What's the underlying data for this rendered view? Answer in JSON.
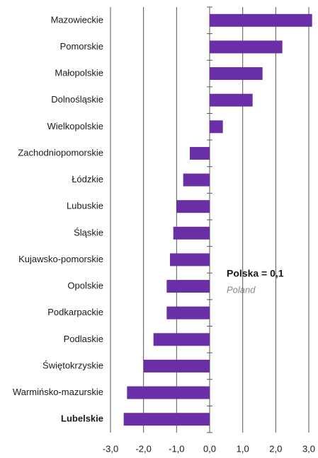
{
  "chart_data": {
    "type": "barh",
    "categories": [
      "Mazowieckie",
      "Pomorskie",
      "Małopolskie",
      "Dolnośląskie",
      "Wielkopolskie",
      "Zachodniopomorskie",
      "Łódzkie",
      "Lubuskie",
      "Śląskie",
      "Kujawsko-pomorskie",
      "Opolskie",
      "Podkarpackie",
      "Podlaskie",
      "Świętokrzyskie",
      "Warmińsko-mazurskie",
      "Lubelskie"
    ],
    "values": [
      3.1,
      2.2,
      1.6,
      1.3,
      0.4,
      -0.6,
      -0.8,
      -1.0,
      -1.1,
      -1.2,
      -1.3,
      -1.3,
      -1.7,
      -2.0,
      -2.5,
      -2.6
    ],
    "color": "#6a2ea6",
    "highlight": "Lubelskie",
    "xlim": [
      -3,
      3
    ],
    "xticks": [
      {
        "value": -3,
        "label": "-3,0"
      },
      {
        "value": -2,
        "label": "-2,0"
      },
      {
        "value": -1,
        "label": "-1,0"
      },
      {
        "value": 0,
        "label": "0,0"
      },
      {
        "value": 1,
        "label": "1,0"
      },
      {
        "value": 2,
        "label": "2,0"
      },
      {
        "value": 3,
        "label": "3,0"
      }
    ],
    "grid": true,
    "annotation": {
      "text": "Polska = 0,1",
      "subtext": "Poland"
    }
  }
}
